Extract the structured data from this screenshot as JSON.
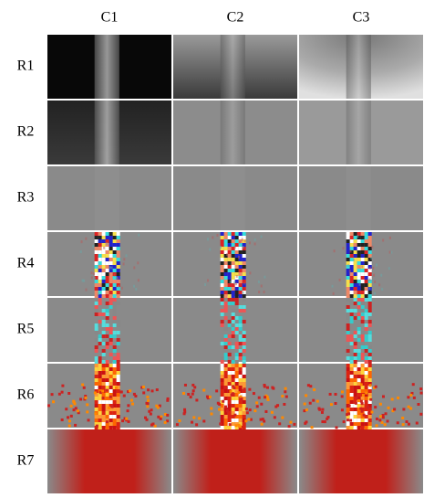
{
  "columns": [
    "C1",
    "C2",
    "C3"
  ],
  "rows": [
    "R1",
    "R2",
    "R3",
    "R4",
    "R5",
    "R6",
    "R7"
  ]
}
